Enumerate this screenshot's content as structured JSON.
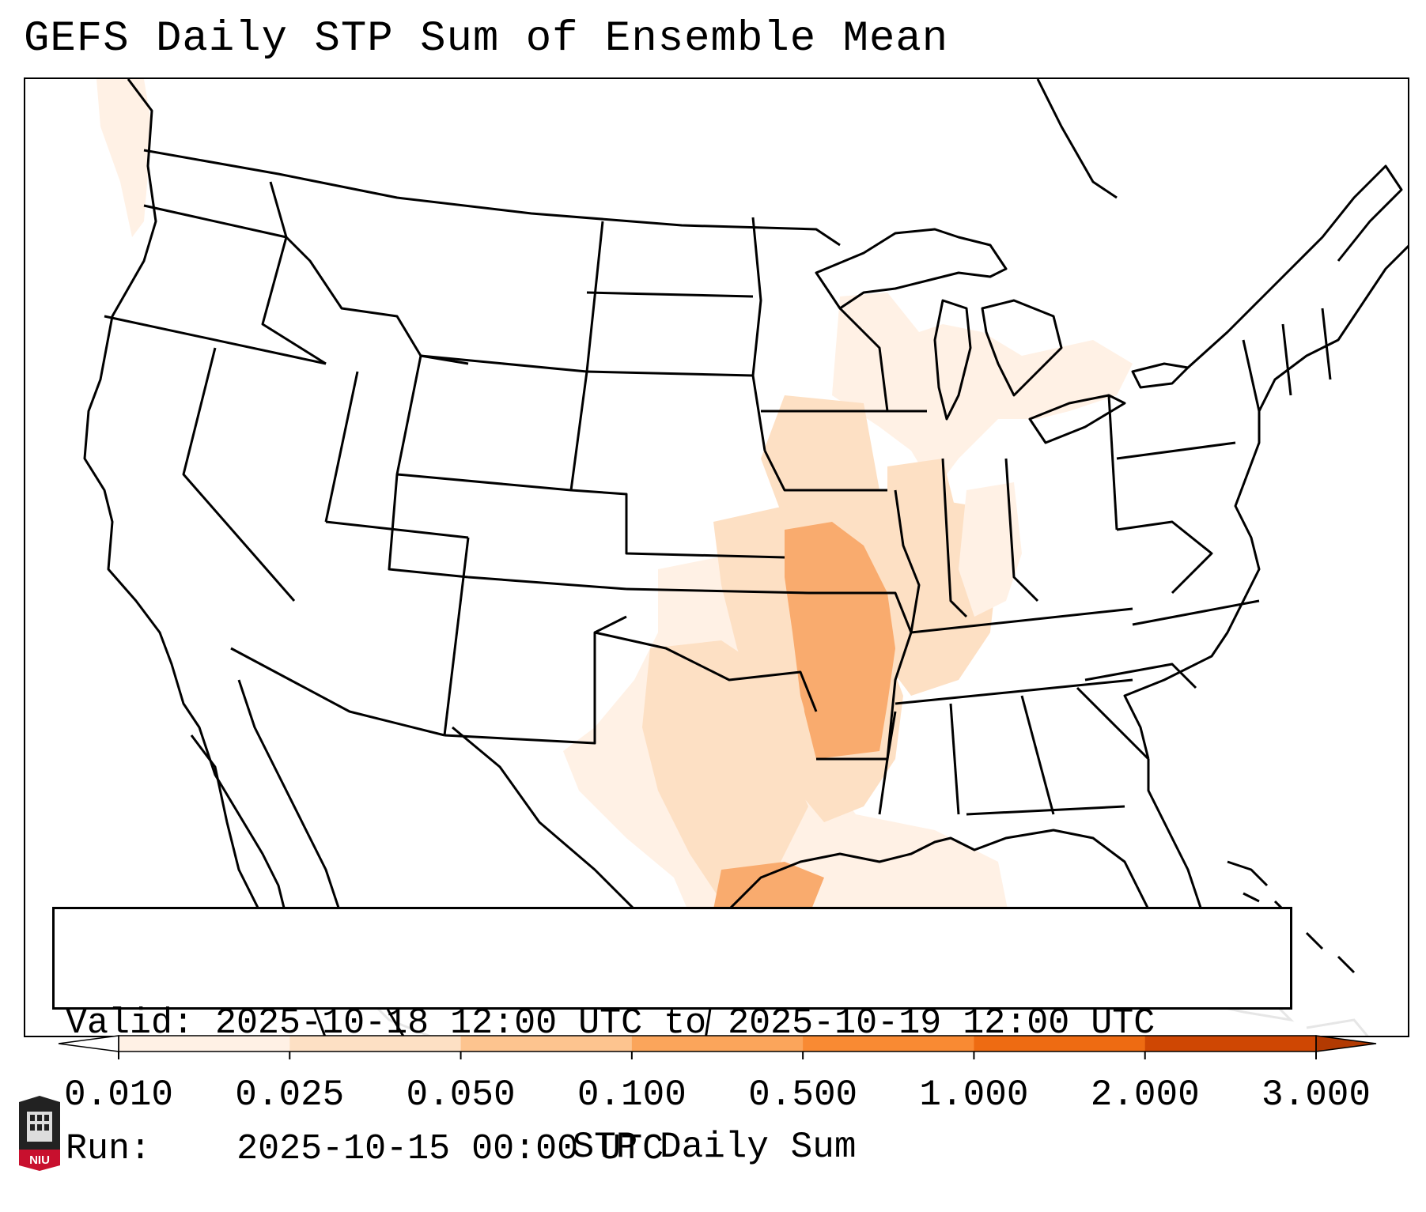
{
  "title": "GEFS Daily STP Sum of Ensemble Mean",
  "info_box": {
    "valid_label": "Valid:",
    "valid_value": "2025-10-18 12:00 UTC to 2025-10-19 12:00 UTC",
    "run_label": "Run:",
    "run_value": "2025-10-15 00:00 UTC"
  },
  "colorbar": {
    "label": "STP Daily Sum",
    "ticks": [
      "0.010",
      "0.025",
      "0.050",
      "0.100",
      "0.500",
      "1.000",
      "2.000",
      "3.000"
    ],
    "colors": [
      "#fff1e5",
      "#fde0c4",
      "#fdc48f",
      "#fba55b",
      "#f98a33",
      "#ee6b12",
      "#cf4703"
    ],
    "extend": "both"
  },
  "logo": {
    "text": "NIU",
    "color": "#c8102e"
  },
  "map": {
    "region": "Contiguous United States",
    "field_colors": {
      "light": "#fff1e5",
      "low": "#fde0c4",
      "mid": "#fbc08a",
      "high": "#f9ab6e"
    }
  }
}
